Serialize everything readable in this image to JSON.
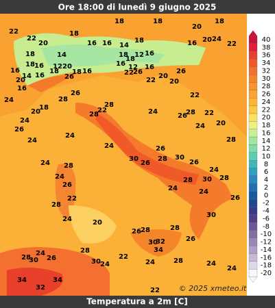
{
  "header": {
    "title": "Ore 18:00 di lunedì 9 giugno 2025"
  },
  "footer": {
    "caption": "Temperatura a 2m [C]"
  },
  "credit": "© 2025 xmeteo.it",
  "scale": [
    {
      "label": 40,
      "color": "#c81436"
    },
    {
      "label": 38,
      "color": "#e0203a"
    },
    {
      "label": 36,
      "color": "#e8402a"
    },
    {
      "label": 34,
      "color": "#f05a28"
    },
    {
      "label": 32,
      "color": "#f47030"
    },
    {
      "label": 30,
      "color": "#f5852a"
    },
    {
      "label": 28,
      "color": "#f8952a"
    },
    {
      "label": 26,
      "color": "#faa530"
    },
    {
      "label": 24,
      "color": "#fbb535"
    },
    {
      "label": 22,
      "color": "#fcc83c"
    },
    {
      "label": 20,
      "color": "#fde060"
    },
    {
      "label": 18,
      "color": "#f0f080"
    },
    {
      "label": 16,
      "color": "#c8f090"
    },
    {
      "label": 14,
      "color": "#a0e8a0"
    },
    {
      "label": 12,
      "color": "#80dca8"
    },
    {
      "label": 10,
      "color": "#60ccb0"
    },
    {
      "label": 8,
      "color": "#40b8b8"
    },
    {
      "label": 6,
      "color": "#30a0c0"
    },
    {
      "label": 4,
      "color": "#2888c0"
    },
    {
      "label": 2,
      "color": "#2070b0"
    },
    {
      "label": 0,
      "color": "#1858a0"
    },
    {
      "label": -2,
      "color": "#1a4a90"
    },
    {
      "label": -4,
      "color": "#3a3a88"
    },
    {
      "label": -6,
      "color": "#504088"
    },
    {
      "label": -8,
      "color": "#6a5898"
    },
    {
      "label": -10,
      "color": "#8070a8"
    },
    {
      "label": -12,
      "color": "#9888b8"
    },
    {
      "label": -14,
      "color": "#b0a0c8"
    },
    {
      "label": -16,
      "color": "#c8b8d8"
    },
    {
      "label": -18,
      "color": "#e0d8e8"
    },
    {
      "label": -20,
      "color": "#f8f8f8"
    }
  ],
  "map_labels": [
    22,
    22,
    20,
    18,
    18,
    20,
    18,
    20,
    24,
    22,
    18,
    16,
    16,
    14,
    18,
    16,
    18,
    14,
    18,
    18,
    12,
    16,
    16,
    16,
    12,
    20,
    18,
    16,
    16,
    18,
    16,
    20,
    14,
    16,
    18,
    12,
    22,
    26,
    20,
    26,
    16,
    26,
    20,
    22,
    24,
    26,
    22,
    20,
    18,
    28,
    22,
    28,
    28,
    24,
    22,
    26,
    24,
    26,
    28,
    24,
    20,
    24,
    24,
    28,
    24,
    26,
    24,
    30,
    26,
    30,
    28,
    26,
    24,
    24,
    26,
    28,
    28,
    30,
    28,
    24,
    28,
    22,
    26,
    24,
    30,
    24,
    20,
    26,
    28,
    28,
    30,
    32,
    34,
    26,
    28,
    28,
    30,
    24,
    26,
    30,
    24,
    22,
    24,
    28,
    24,
    24,
    34,
    34,
    32,
    22
  ]
}
